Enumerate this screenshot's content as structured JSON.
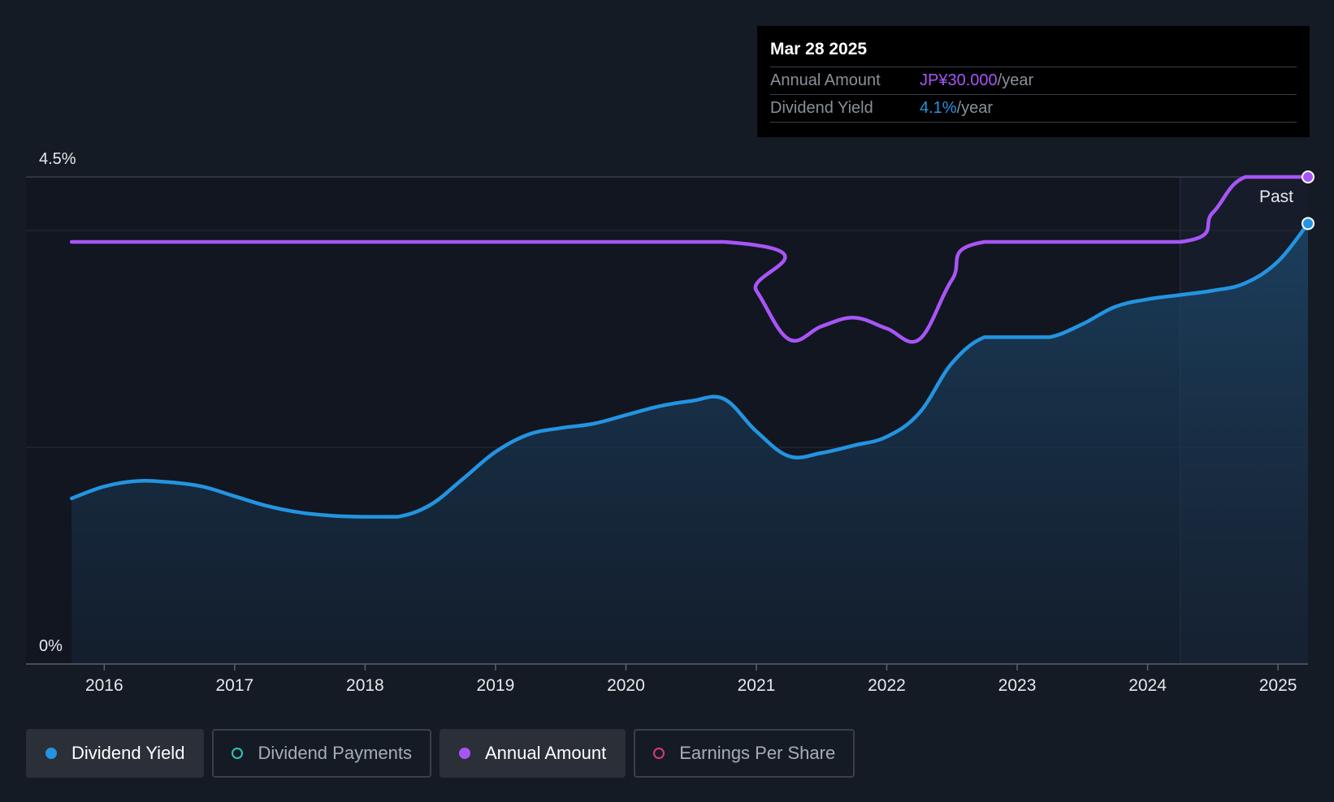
{
  "tooltip": {
    "date": "Mar 28 2025",
    "rows": [
      {
        "label": "Annual Amount",
        "value": "JP¥30.000",
        "unit": "/year"
      },
      {
        "label": "Dividend Yield",
        "value": "4.1%",
        "unit": "/year"
      }
    ]
  },
  "legend": [
    {
      "label": "Dividend Yield",
      "color": "#2394e1",
      "active": true,
      "filled": true
    },
    {
      "label": "Dividend Payments",
      "color": "#2ec4b6",
      "active": false,
      "filled": false
    },
    {
      "label": "Annual Amount",
      "color": "#a855f7",
      "active": true,
      "filled": true
    },
    {
      "label": "Earnings Per Share",
      "color": "#d63a7a",
      "active": false,
      "filled": false
    }
  ],
  "chart_data": {
    "type": "line",
    "y_tick_labels": [
      "4.5%",
      "0%"
    ],
    "ylim": [
      0,
      4.5
    ],
    "x_ticks": [
      2016,
      2017,
      2018,
      2019,
      2020,
      2021,
      2022,
      2023,
      2024,
      2025
    ],
    "xlim": [
      2015.4,
      2025.23
    ],
    "past_label": "Past",
    "past_start": 2024.25,
    "series": [
      {
        "name": "Dividend Yield",
        "color": "#2394e1",
        "area": true,
        "points": [
          [
            2015.75,
            1.53
          ],
          [
            2016.0,
            1.64
          ],
          [
            2016.25,
            1.69
          ],
          [
            2016.5,
            1.68
          ],
          [
            2016.75,
            1.64
          ],
          [
            2017.0,
            1.55
          ],
          [
            2017.25,
            1.46
          ],
          [
            2017.5,
            1.4
          ],
          [
            2017.75,
            1.37
          ],
          [
            2018.0,
            1.36
          ],
          [
            2018.25,
            1.36
          ],
          [
            2018.5,
            1.47
          ],
          [
            2018.75,
            1.71
          ],
          [
            2019.0,
            1.96
          ],
          [
            2019.25,
            2.12
          ],
          [
            2019.5,
            2.18
          ],
          [
            2019.75,
            2.22
          ],
          [
            2020.0,
            2.3
          ],
          [
            2020.25,
            2.38
          ],
          [
            2020.5,
            2.43
          ],
          [
            2020.75,
            2.45
          ],
          [
            2021.0,
            2.15
          ],
          [
            2021.25,
            1.92
          ],
          [
            2021.5,
            1.95
          ],
          [
            2021.75,
            2.02
          ],
          [
            2022.0,
            2.1
          ],
          [
            2022.25,
            2.32
          ],
          [
            2022.5,
            2.78
          ],
          [
            2022.75,
            3.02
          ],
          [
            2023.0,
            3.02
          ],
          [
            2023.25,
            3.02
          ],
          [
            2023.5,
            3.14
          ],
          [
            2023.75,
            3.3
          ],
          [
            2024.0,
            3.37
          ],
          [
            2024.25,
            3.41
          ],
          [
            2024.5,
            3.45
          ],
          [
            2024.75,
            3.52
          ],
          [
            2025.0,
            3.72
          ],
          [
            2025.23,
            4.07
          ]
        ]
      },
      {
        "name": "Annual Amount",
        "color": "#a855f7",
        "area": false,
        "points": [
          [
            2015.75,
            3.9
          ],
          [
            2020.75,
            3.9
          ],
          [
            2021.0,
            3.45
          ],
          [
            2021.25,
            3.0
          ],
          [
            2021.5,
            3.12
          ],
          [
            2021.75,
            3.2
          ],
          [
            2022.0,
            3.1
          ],
          [
            2022.25,
            3.0
          ],
          [
            2022.5,
            3.55
          ],
          [
            2022.75,
            3.9
          ],
          [
            2024.25,
            3.9
          ],
          [
            2024.5,
            4.17
          ],
          [
            2024.75,
            4.5
          ],
          [
            2025.23,
            4.5
          ]
        ]
      }
    ]
  }
}
